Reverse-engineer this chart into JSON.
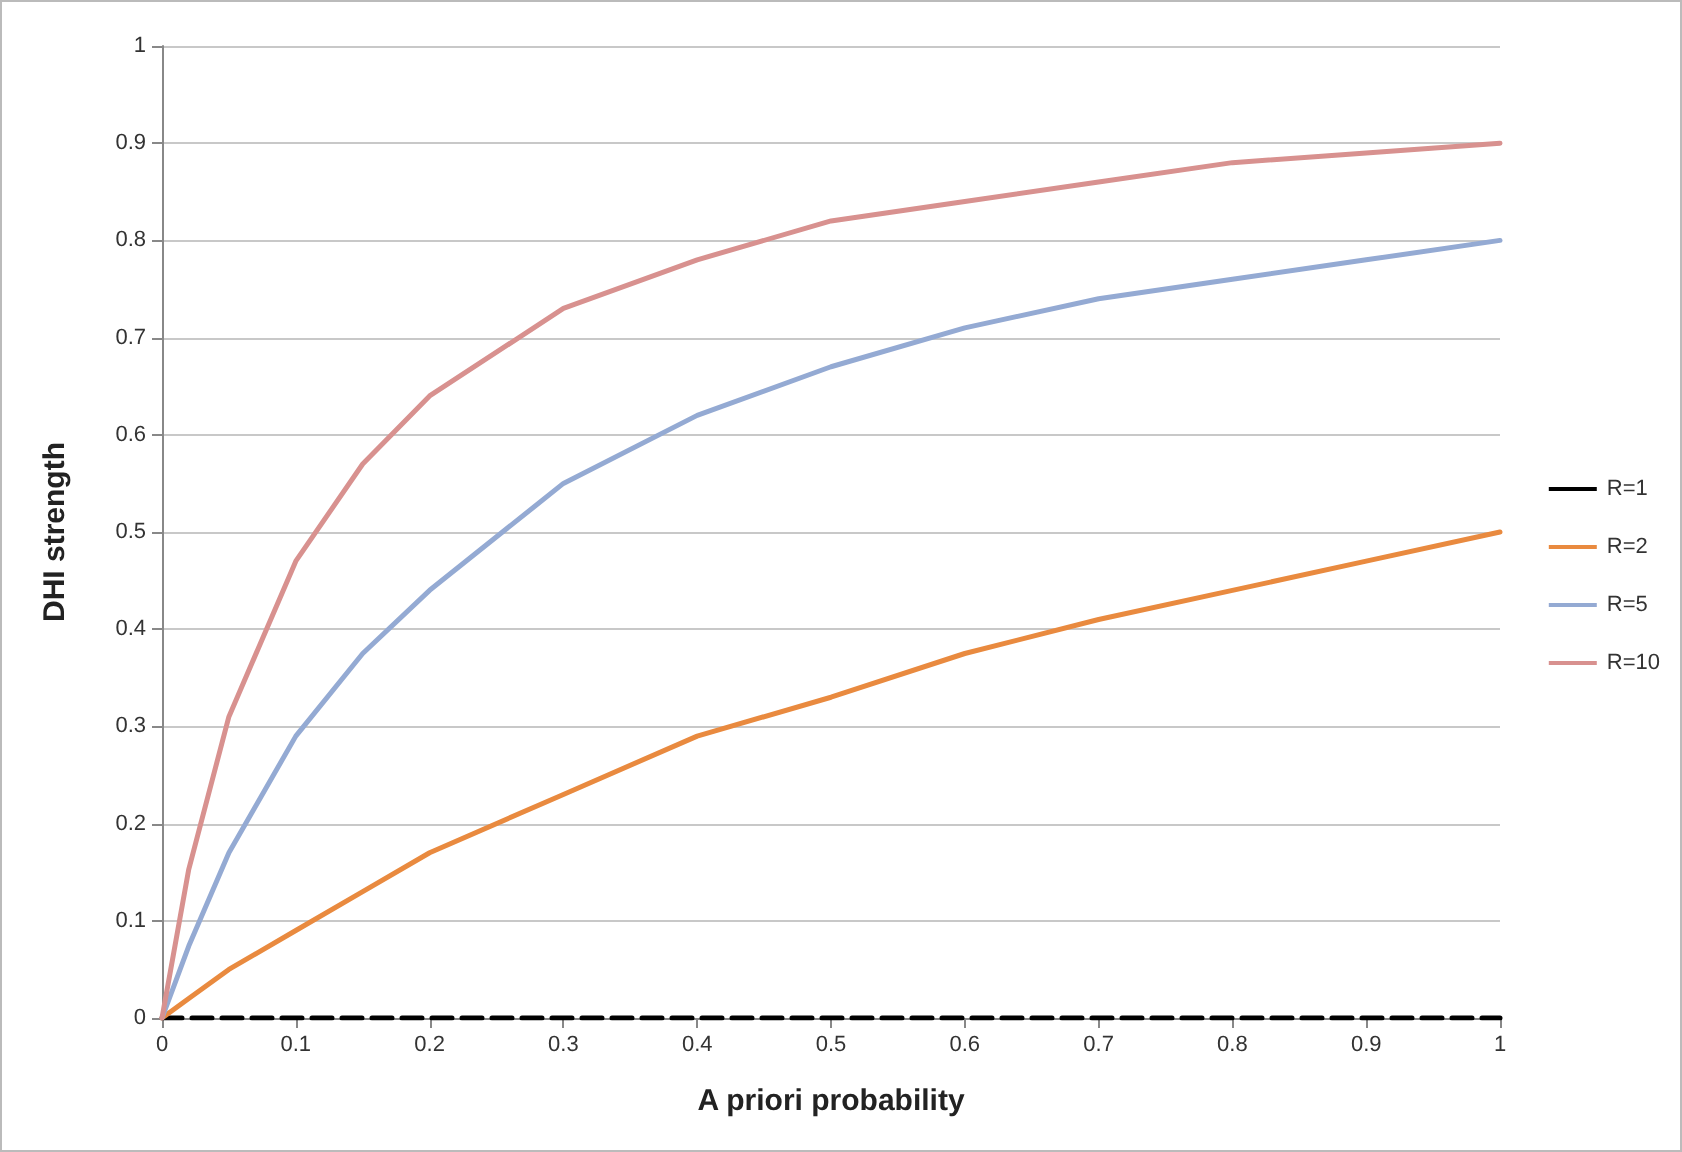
{
  "chart_data": {
    "type": "line",
    "xlabel": "A priori probability",
    "ylabel": "DHI strength",
    "x": [
      0,
      0.02,
      0.05,
      0.1,
      0.15,
      0.2,
      0.3,
      0.4,
      0.5,
      0.6,
      0.7,
      0.8,
      0.9,
      1
    ],
    "series": [
      {
        "name": "R=1",
        "color": "#000000",
        "line_style": "dashed",
        "values": [
          0,
          0,
          0,
          0,
          0,
          0,
          0,
          0,
          0,
          0,
          0,
          0,
          0,
          0
        ]
      },
      {
        "name": "R=2",
        "color": "#e98a3f",
        "line_style": "solid",
        "values": [
          0,
          0.02,
          0.05,
          0.09,
          0.13,
          0.17,
          0.23,
          0.29,
          0.33,
          0.375,
          0.41,
          0.44,
          0.47,
          0.5
        ]
      },
      {
        "name": "R=5",
        "color": "#94aad3",
        "line_style": "solid",
        "values": [
          0,
          0.074,
          0.17,
          0.29,
          0.375,
          0.44,
          0.55,
          0.62,
          0.67,
          0.71,
          0.74,
          0.76,
          0.78,
          0.8
        ]
      },
      {
        "name": "R=10",
        "color": "#d8918f",
        "line_style": "solid",
        "values": [
          0,
          0.153,
          0.31,
          0.47,
          0.57,
          0.64,
          0.73,
          0.78,
          0.82,
          0.84,
          0.86,
          0.88,
          0.89,
          0.9
        ]
      }
    ],
    "xlim": [
      0,
      1
    ],
    "xticks": [
      0,
      0.1,
      0.2,
      0.3,
      0.4,
      0.5,
      0.6,
      0.7,
      0.8,
      0.9,
      1
    ],
    "ylim": [
      0,
      1
    ],
    "yticks": [
      0,
      0.1,
      0.2,
      0.3,
      0.4,
      0.5,
      0.6,
      0.7,
      0.8,
      0.9,
      1
    ],
    "grid": "y",
    "legend": "right",
    "marker": "none"
  }
}
